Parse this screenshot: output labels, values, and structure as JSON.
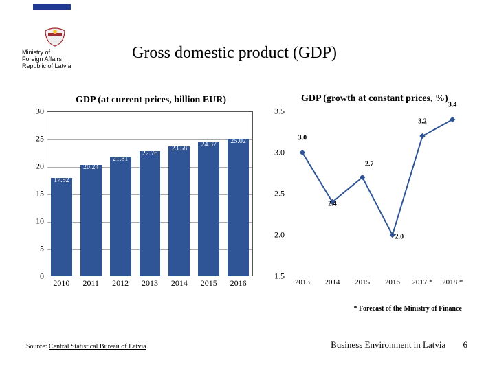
{
  "header": {
    "title": "Gross domestic product (GDP)",
    "logo_line1": "Ministry of",
    "logo_line2": "Foreign Affairs",
    "logo_line3": "Republic of Latvia"
  },
  "bar_chart": {
    "title": "GDP (at current prices, billion EUR)",
    "categories": [
      "2010",
      "2011",
      "2012",
      "2013",
      "2014",
      "2015",
      "2016"
    ],
    "values": [
      17.92,
      20.24,
      21.81,
      22.76,
      23.58,
      24.37,
      25.02
    ],
    "ymin": 0,
    "ymax": 30,
    "ytick_step": 5,
    "bar_color": "#2f5597",
    "value_label_color": "#ffffff",
    "grid_color": "#aaaaaa",
    "border_color": "#555555",
    "background_color": "#ffffff"
  },
  "line_chart": {
    "title": "GDP (growth at constant prices, %)",
    "categories": [
      "2013",
      "2014",
      "2015",
      "2016",
      "2017 *",
      "2018 *"
    ],
    "values": [
      3.0,
      2.4,
      2.7,
      2.0,
      3.2,
      3.4
    ],
    "ymin": 1.5,
    "ymax": 3.5,
    "ytick_step": 0.5,
    "line_color": "#2f5597",
    "marker_color": "#2f5597",
    "marker_style": "diamond",
    "marker_size": 6,
    "label_color": "#000000",
    "background_color": "#ffffff",
    "line_width": 2
  },
  "footer": {
    "footnote": "* Forecast of the Ministry of Finance",
    "source_prefix": "Source: ",
    "source_link": "Central Statistical Bureau of Latvia",
    "right_text": "Business Environment in Latvia",
    "page_number": "6"
  }
}
